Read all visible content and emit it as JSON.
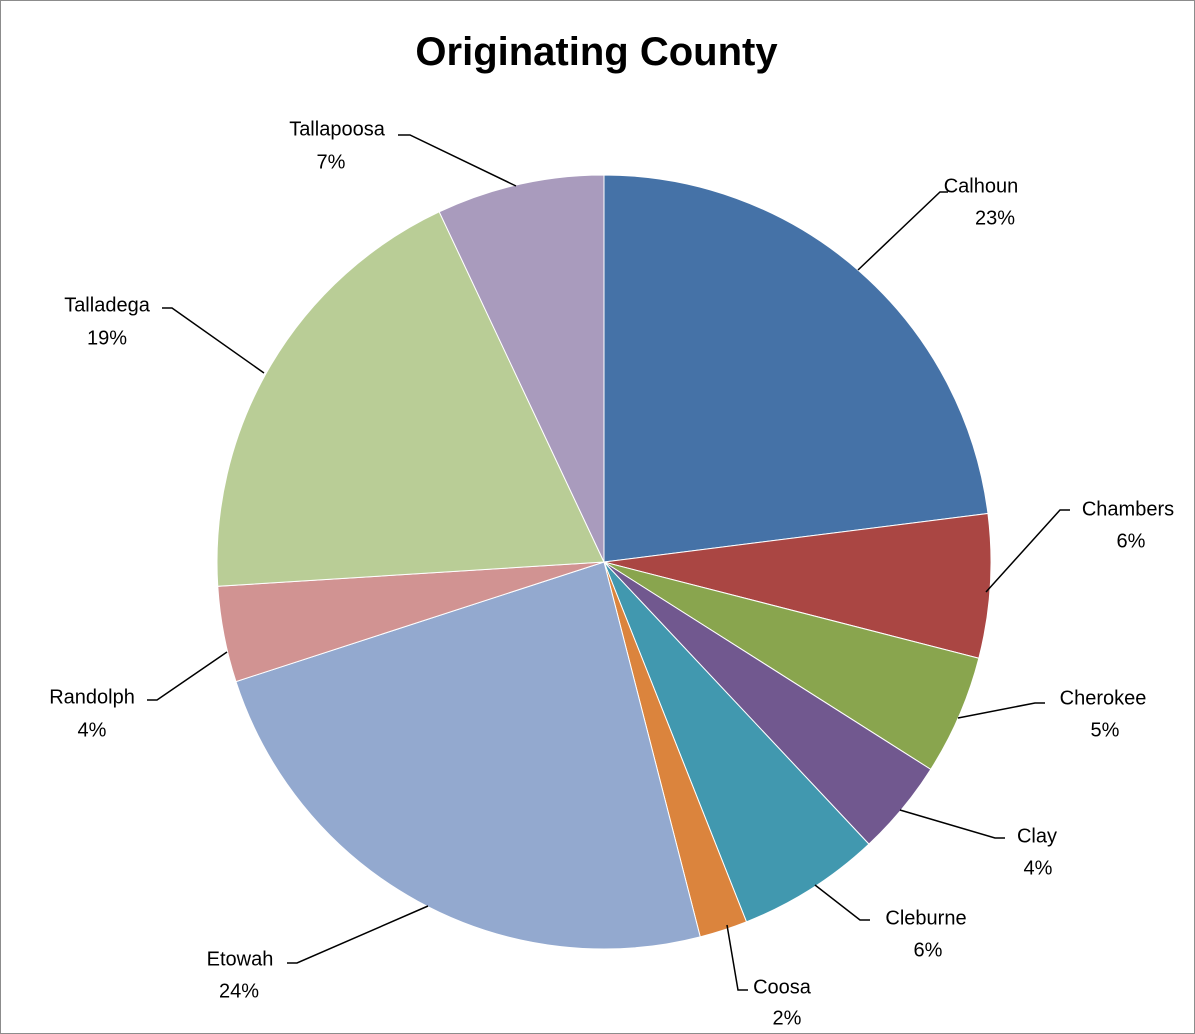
{
  "chart_data": {
    "type": "pie",
    "title": "Originating County",
    "slices": [
      {
        "label": "Calhoun",
        "value": 23,
        "pct_label": "23%",
        "color": "#4572A7"
      },
      {
        "label": "Chambers",
        "value": 6,
        "pct_label": "6%",
        "color": "#AA4643"
      },
      {
        "label": "Cherokee",
        "value": 5,
        "pct_label": "5%",
        "color": "#89A54E"
      },
      {
        "label": "Clay",
        "value": 4,
        "pct_label": "4%",
        "color": "#71588F"
      },
      {
        "label": "Cleburne",
        "value": 6,
        "pct_label": "6%",
        "color": "#4198AF"
      },
      {
        "label": "Coosa",
        "value": 2,
        "pct_label": "2%",
        "color": "#DB843D"
      },
      {
        "label": "Etowah",
        "value": 24,
        "pct_label": "24%",
        "color": "#93A9CF"
      },
      {
        "label": "Randolph",
        "value": 4,
        "pct_label": "4%",
        "color": "#D19392"
      },
      {
        "label": "Talladega",
        "value": 19,
        "pct_label": "19%",
        "color": "#B9CD96"
      },
      {
        "label": "Tallapoosa",
        "value": 7,
        "pct_label": "7%",
        "color": "#A99BBD"
      }
    ],
    "start_angle": "12 o'clock",
    "direction": "clockwise",
    "legend": "none"
  }
}
